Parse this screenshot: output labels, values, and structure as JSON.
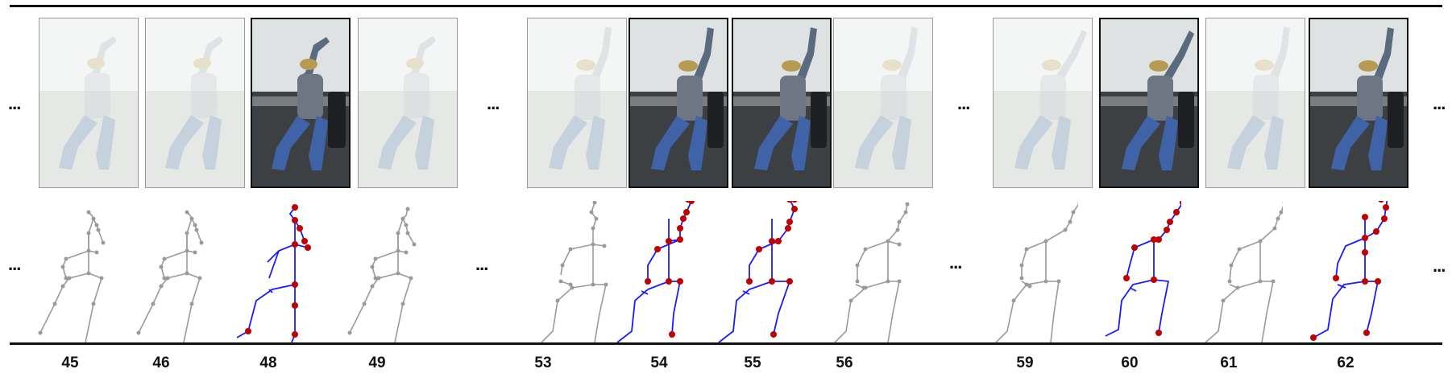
{
  "ellipsis_text": "...",
  "frame_labels": [
    "45",
    "46",
    "48",
    "49",
    "53",
    "54",
    "55",
    "56",
    "59",
    "60",
    "61",
    "62"
  ],
  "colors": {
    "faded_skeleton": "#9a9a9a",
    "key_skeleton_bones": "#1a1aff",
    "key_skeleton_joints": "#c00000",
    "rule": "#111111"
  }
}
